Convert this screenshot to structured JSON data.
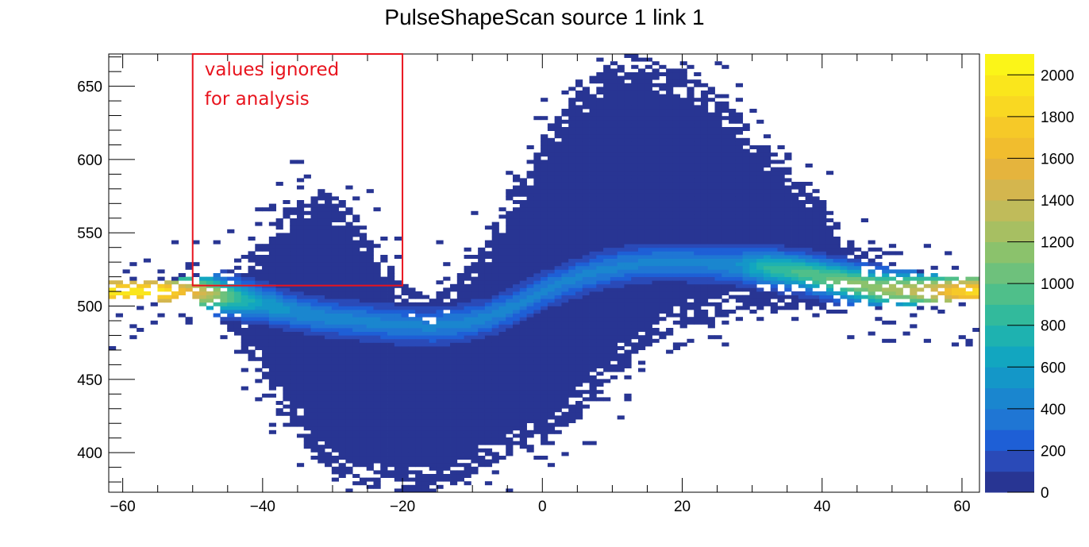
{
  "chart_data": {
    "type": "heatmap",
    "title": "PulseShapeScan source 1 link 1",
    "xlabel": "",
    "ylabel": "",
    "xlim": [
      -62,
      62.5
    ],
    "ylim": [
      373,
      672
    ],
    "x_ticks": [
      -60,
      -40,
      -20,
      0,
      20,
      40,
      60
    ],
    "x_tick_labels": [
      "−60",
      "−40",
      "−20",
      "0",
      "20",
      "40",
      "60"
    ],
    "y_ticks": [
      400,
      450,
      500,
      550,
      600,
      650
    ],
    "y_tick_labels": [
      "400",
      "450",
      "500",
      "550",
      "600",
      "650"
    ],
    "colorbar": {
      "zlim": [
        0,
        2100
      ],
      "ticks": [
        0,
        200,
        400,
        600,
        800,
        1000,
        1200,
        1400,
        1600,
        1800,
        2000
      ],
      "tick_labels": [
        "0",
        "200",
        "400",
        "600",
        "800",
        "1000",
        "1200",
        "1400",
        "1600",
        "1800",
        "2000"
      ],
      "colors": [
        "#283593",
        "#2a4ab8",
        "#1e5fd6",
        "#1f76d4",
        "#1a86cf",
        "#1497c8",
        "#12a6c0",
        "#1eb2b0",
        "#32ba9c",
        "#4fbf8a",
        "#6ec17c",
        "#8bc26c",
        "#a7bf62",
        "#c0bb5a",
        "#d4b64e",
        "#e5b43d",
        "#f1bd2e",
        "#f6c928",
        "#f9d822",
        "#fae61c",
        "#fbf518"
      ]
    },
    "grid": false,
    "annotation": {
      "lines": [
        "values ignored",
        "for analysis"
      ],
      "box_x": [
        -50,
        -20
      ],
      "box_y": [
        514,
        672
      ],
      "color": "#e8141e"
    },
    "series": [
      {
        "name": "",
        "x": [
          -62,
          -55,
          -48,
          -44,
          -40,
          -36,
          -32,
          -28,
          -24,
          -20,
          -16,
          -12,
          -8,
          -4,
          0,
          4,
          8,
          12,
          16,
          20,
          24,
          28,
          32,
          36,
          40,
          44,
          48,
          52,
          56,
          60,
          62.5
        ],
        "core_center": [
          510,
          510,
          509,
          506,
          502,
          497,
          493,
          491,
          489,
          487,
          486,
          488,
          492,
          500,
          510,
          518,
          524,
          528,
          530,
          530,
          529,
          528,
          526,
          524,
          520,
          516,
          512,
          511,
          510,
          510,
          510
        ],
        "upper_edge": [
          518,
          518,
          520,
          530,
          545,
          570,
          580,
          570,
          545,
          515,
          505,
          520,
          545,
          580,
          615,
          640,
          660,
          665,
          665,
          660,
          650,
          630,
          610,
          590,
          570,
          545,
          530,
          525,
          522,
          520,
          520
        ],
        "lower_edge": [
          504,
          504,
          500,
          480,
          450,
          420,
          395,
          380,
          375,
          373,
          373,
          380,
          390,
          400,
          405,
          420,
          440,
          460,
          475,
          485,
          490,
          495,
          497,
          498,
          499,
          500,
          500,
          501,
          502,
          503,
          503
        ],
        "peak_counts": [
          2000,
          2000,
          1400,
          900,
          600,
          500,
          450,
          430,
          430,
          420,
          420,
          430,
          430,
          430,
          420,
          420,
          420,
          420,
          420,
          420,
          430,
          500,
          800,
          900,
          1000,
          1100,
          1200,
          1300,
          1500,
          1800,
          1900
        ]
      }
    ]
  }
}
